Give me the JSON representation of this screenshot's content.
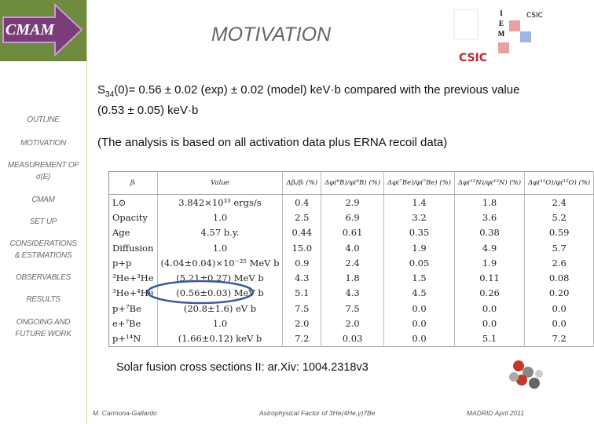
{
  "logo": {
    "text": "CMAM"
  },
  "header": {
    "title": "MOTIVATION",
    "logo_letters": [
      "I",
      "E",
      "M"
    ],
    "logo_small": "CSIC",
    "logo_big": "CSIC"
  },
  "nav": [
    "OUTLINE",
    "MOTIVATION",
    "MEASUREMENT OF\nσ(E)",
    "CMAM",
    "SET UP",
    "CONSIDERATIONS\n& ESTIMATIONS",
    "OBSERVABLES",
    "RESULTS",
    "ONGOING AND\nFUTURE WORK"
  ],
  "body": {
    "s_symbol": "S",
    "s_subscript": "34",
    "statement": "(0)= 0.56 ± 0.02 (exp) ± 0.02 (model) keV·b compared with the previous value (0.53 ± 0.05) keV·b",
    "note": "(The analysis is based on all activation data plus ERNA recoil data)"
  },
  "table": {
    "header": [
      "βᵢ",
      "Value",
      "Δβᵢ/βᵢ (%)",
      "Δφ(⁸B)/φ(⁸B) (%)",
      "Δφ(⁷Be)/φ(⁷Be) (%)",
      "Δφ(¹³N)/φ(¹³N) (%)",
      "Δφ(¹⁵O)/φ(¹⁵O) (%)"
    ],
    "rows": [
      [
        "L⊙",
        "3.842×10³³ ergs/s",
        "0.4",
        "2.9",
        "1.4",
        "1.8",
        "2.4"
      ],
      [
        "Opacity",
        "1.0",
        "2.5",
        "6.9",
        "3.2",
        "3.6",
        "5.2"
      ],
      [
        "Age",
        "4.57 b.y.",
        "0.44",
        "0.61",
        "0.35",
        "0.38",
        "0.59"
      ],
      [
        "Diffusion",
        "1.0",
        "15.0",
        "4.0",
        "1.9",
        "4.9",
        "5.7"
      ],
      [
        "p+p",
        "(4.04±0.04)×10⁻²⁵ MeV b",
        "0.9",
        "2.4",
        "0.05",
        "1.9",
        "2.6"
      ],
      [
        "³He+³He",
        "(5.21±0.27) MeV b",
        "4.3",
        "1.8",
        "1.5",
        "0.11",
        "0.08"
      ],
      [
        "³He+⁴He",
        "(0.56±0.03) MeV b",
        "5.1",
        "4.3",
        "4.5",
        "0.26",
        "0.20"
      ],
      [
        "p+⁷Be",
        "(20.8±1.6) eV b",
        "7.5",
        "7.5",
        "0.0",
        "0.0",
        "0.0"
      ],
      [
        "e+⁷Be",
        "1.0",
        "2.0",
        "2.0",
        "0.0",
        "0.0",
        "0.0"
      ],
      [
        "p+¹⁴N",
        "(1.66±0.12) keV b",
        "7.2",
        "0.03",
        "0.0",
        "5.1",
        "7.2"
      ]
    ]
  },
  "citation": "Solar fusion cross sections II: ar.Xiv: 1004.2318v3",
  "footer": {
    "author": "M. Carmona-Gallardo",
    "subject": "Astrophysical Factor of 3He(4He,γ)7Be",
    "place_date": "MADRID  April 2011"
  }
}
